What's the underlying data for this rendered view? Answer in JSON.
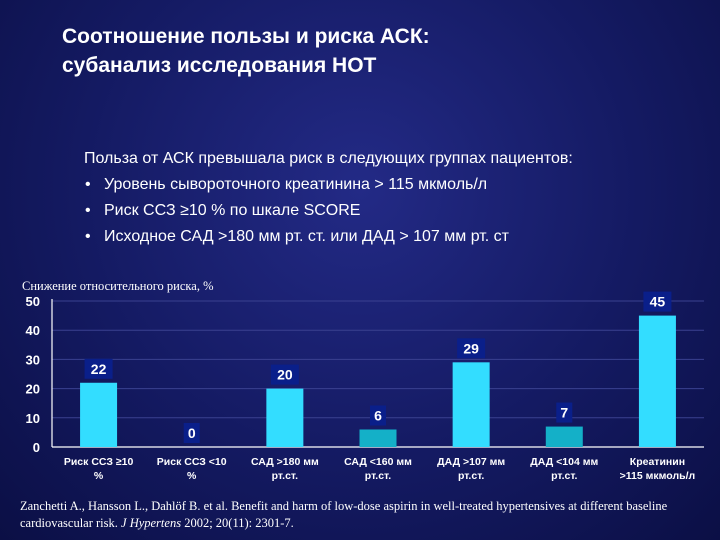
{
  "slide": {
    "title_lines": [
      "Соотношение пользы и риска АСК:",
      "субанализ исследования НОТ"
    ],
    "intro": "Польза от АСК превышала риск в следующих группах пациентов:",
    "bullets": [
      "Уровень сывороточного креатинина > 115 мкмоль/л",
      "Риск ССЗ ≥10 % по шкале SCORE",
      "Исходное САД >180 мм рт. ст. или ДАД  > 107 мм рт. ст"
    ],
    "bullet_symbol": "•",
    "citation": {
      "text": "Zanchetti A., Hansson L., Dahlöf B. et al. Benefit and harm of low-dose aspirin in well-treated hypertensives at different baseline cardiovascular risk.",
      "journal": "J Hypertens",
      "ref": "2002; 20(11): 2301-7."
    }
  },
  "chart_data": {
    "type": "bar",
    "title": "Снижение относительного риска, %",
    "ylabel": "Снижение относительного риска, %",
    "xlabel": "",
    "ylim": [
      0,
      50
    ],
    "yticks": [
      0,
      10,
      20,
      30,
      40,
      50
    ],
    "grid": true,
    "categories": [
      [
        "Риск ССЗ ≥10",
        "%"
      ],
      [
        "Риск ССЗ <10",
        "%"
      ],
      [
        "САД >180 мм",
        "рт.ст."
      ],
      [
        "САД <160 мм",
        "рт.ст."
      ],
      [
        "ДАД >107 мм",
        "рт.ст."
      ],
      [
        "ДАД <104 мм",
        "рт.ст."
      ],
      [
        "Креатинин",
        ">115 мкмоль/л"
      ]
    ],
    "values": [
      22,
      0,
      20,
      6,
      29,
      7,
      45
    ],
    "data_labels": [
      "22",
      "0",
      "20",
      "6",
      "29",
      "7",
      "45"
    ],
    "bar_colors": [
      "#33ddff",
      "#33ddff",
      "#33ddff",
      "#14b0c8",
      "#33ddff",
      "#14b0c8",
      "#33ddff"
    ],
    "label_box_color": "#0a1f8a",
    "axis_color": "#ffffff"
  }
}
